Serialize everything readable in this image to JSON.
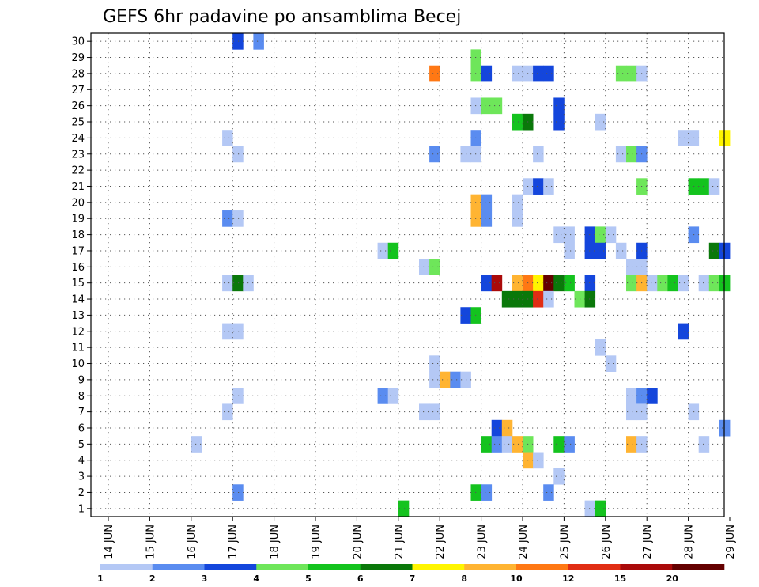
{
  "chart_data": {
    "type": "heatmap",
    "title": "GEFS 6hr padavine po ansamblima Becej",
    "xlabel": "",
    "ylabel": "",
    "x_tick_labels": [
      "14 JUN",
      "15 JUN",
      "16 JUN",
      "17 JUN",
      "18 JUN",
      "19 JUN",
      "20 JUN",
      "21 JUN",
      "22 JUN",
      "23 JUN",
      "24 JUN",
      "25 JUN",
      "26 JUN",
      "27 JUN",
      "28 JUN",
      "29 JUN"
    ],
    "y_tick_labels": [
      "1",
      "2",
      "3",
      "4",
      "5",
      "6",
      "7",
      "8",
      "9",
      "10",
      "11",
      "12",
      "13",
      "14",
      "15",
      "16",
      "17",
      "18",
      "19",
      "20",
      "21",
      "22",
      "23",
      "24",
      "25",
      "26",
      "27",
      "28",
      "29",
      "30"
    ],
    "grid": true,
    "colorbar": {
      "labels": [
        "1",
        "2",
        "3",
        "4",
        "5",
        "6",
        "7",
        "8",
        "10",
        "12",
        "15",
        "20"
      ],
      "colors": [
        "#b4c8f5",
        "#5a8cf0",
        "#1446dc",
        "#6ee65a",
        "#14c31e",
        "#0a780a",
        "#fff500",
        "#ffb432",
        "#ff7814",
        "#e12d14",
        "#aa0a0a",
        "#640000"
      ]
    },
    "cells": [
      {
        "member": 30,
        "day": 17.0,
        "level": 3
      },
      {
        "member": 30,
        "day": 17.5,
        "level": 2
      },
      {
        "member": 29,
        "day": 22.75,
        "level": 4
      },
      {
        "member": 28,
        "day": 21.75,
        "level": 9
      },
      {
        "member": 28,
        "day": 22.75,
        "level": 4
      },
      {
        "member": 28,
        "day": 23.0,
        "level": 3
      },
      {
        "member": 28,
        "day": 23.75,
        "level": 1
      },
      {
        "member": 28,
        "day": 24.0,
        "level": 1
      },
      {
        "member": 28,
        "day": 24.25,
        "level": 3
      },
      {
        "member": 28,
        "day": 24.5,
        "level": 3
      },
      {
        "member": 28,
        "day": 26.25,
        "level": 4
      },
      {
        "member": 28,
        "day": 26.5,
        "level": 4
      },
      {
        "member": 28,
        "day": 26.75,
        "level": 1
      },
      {
        "member": 26,
        "day": 22.75,
        "level": 1
      },
      {
        "member": 26,
        "day": 23.0,
        "level": 4
      },
      {
        "member": 26,
        "day": 23.25,
        "level": 4
      },
      {
        "member": 26,
        "day": 24.75,
        "level": 3
      },
      {
        "member": 25,
        "day": 23.75,
        "level": 5
      },
      {
        "member": 25,
        "day": 24.0,
        "level": 6
      },
      {
        "member": 25,
        "day": 24.75,
        "level": 3
      },
      {
        "member": 25,
        "day": 25.75,
        "level": 1
      },
      {
        "member": 24,
        "day": 16.75,
        "level": 1
      },
      {
        "member": 24,
        "day": 22.75,
        "level": 2
      },
      {
        "member": 24,
        "day": 27.75,
        "level": 1
      },
      {
        "member": 24,
        "day": 28.0,
        "level": 1
      },
      {
        "member": 24,
        "day": 28.75,
        "level": 7
      },
      {
        "member": 23,
        "day": 17.0,
        "level": 1
      },
      {
        "member": 23,
        "day": 21.75,
        "level": 2
      },
      {
        "member": 23,
        "day": 22.5,
        "level": 1
      },
      {
        "member": 23,
        "day": 22.75,
        "level": 1
      },
      {
        "member": 23,
        "day": 24.25,
        "level": 1
      },
      {
        "member": 23,
        "day": 26.25,
        "level": 1
      },
      {
        "member": 23,
        "day": 26.5,
        "level": 4
      },
      {
        "member": 23,
        "day": 26.75,
        "level": 2
      },
      {
        "member": 21,
        "day": 24.0,
        "level": 1
      },
      {
        "member": 21,
        "day": 24.25,
        "level": 3
      },
      {
        "member": 21,
        "day": 24.5,
        "level": 1
      },
      {
        "member": 21,
        "day": 26.75,
        "level": 4
      },
      {
        "member": 21,
        "day": 28.0,
        "level": 5
      },
      {
        "member": 21,
        "day": 28.25,
        "level": 5
      },
      {
        "member": 21,
        "day": 28.5,
        "level": 1
      },
      {
        "member": 19,
        "day": 16.75,
        "level": 2
      },
      {
        "member": 19,
        "day": 17.0,
        "level": 1
      },
      {
        "member": 19,
        "day": 22.75,
        "level": 8
      },
      {
        "member": 19,
        "day": 23.0,
        "level": 2
      },
      {
        "member": 19,
        "day": 23.75,
        "level": 1
      },
      {
        "member": 18,
        "day": 24.75,
        "level": 1
      },
      {
        "member": 18,
        "day": 25.0,
        "level": 1
      },
      {
        "member": 18,
        "day": 25.5,
        "level": 3
      },
      {
        "member": 18,
        "day": 25.75,
        "level": 4
      },
      {
        "member": 18,
        "day": 26.0,
        "level": 1
      },
      {
        "member": 18,
        "day": 28.0,
        "level": 2
      },
      {
        "member": 20,
        "day": 22.75,
        "level": 8
      },
      {
        "member": 20,
        "day": 23.0,
        "level": 2
      },
      {
        "member": 20,
        "day": 23.75,
        "level": 1
      },
      {
        "member": 17,
        "day": 20.5,
        "level": 1
      },
      {
        "member": 17,
        "day": 20.75,
        "level": 5
      },
      {
        "member": 17,
        "day": 25.0,
        "level": 1
      },
      {
        "member": 17,
        "day": 25.5,
        "level": 3
      },
      {
        "member": 17,
        "day": 25.75,
        "level": 3
      },
      {
        "member": 17,
        "day": 26.25,
        "level": 1
      },
      {
        "member": 17,
        "day": 26.75,
        "level": 3
      },
      {
        "member": 17,
        "day": 28.5,
        "level": 6
      },
      {
        "member": 17,
        "day": 28.75,
        "level": 3
      },
      {
        "member": 16,
        "day": 21.5,
        "level": 1
      },
      {
        "member": 16,
        "day": 21.75,
        "level": 4
      },
      {
        "member": 16,
        "day": 26.5,
        "level": 1
      },
      {
        "member": 16,
        "day": 26.75,
        "level": 1
      },
      {
        "member": 15,
        "day": 16.75,
        "level": 1
      },
      {
        "member": 15,
        "day": 17.0,
        "level": 6
      },
      {
        "member": 15,
        "day": 17.25,
        "level": 1
      },
      {
        "member": 15,
        "day": 23.0,
        "level": 3
      },
      {
        "member": 15,
        "day": 23.25,
        "level": 11
      },
      {
        "member": 15,
        "day": 23.75,
        "level": 8
      },
      {
        "member": 15,
        "day": 24.0,
        "level": 9
      },
      {
        "member": 15,
        "day": 24.25,
        "level": 7
      },
      {
        "member": 15,
        "day": 24.5,
        "level": 12
      },
      {
        "member": 15,
        "day": 24.75,
        "level": 6
      },
      {
        "member": 15,
        "day": 25.0,
        "level": 5
      },
      {
        "member": 15,
        "day": 25.5,
        "level": 3
      },
      {
        "member": 15,
        "day": 26.5,
        "level": 4
      },
      {
        "member": 15,
        "day": 26.75,
        "level": 8
      },
      {
        "member": 15,
        "day": 27.0,
        "level": 1
      },
      {
        "member": 15,
        "day": 27.25,
        "level": 4
      },
      {
        "member": 15,
        "day": 27.5,
        "level": 5
      },
      {
        "member": 15,
        "day": 27.75,
        "level": 1
      },
      {
        "member": 15,
        "day": 28.25,
        "level": 1
      },
      {
        "member": 15,
        "day": 28.5,
        "level": 4
      },
      {
        "member": 15,
        "day": 28.75,
        "level": 5
      },
      {
        "member": 14,
        "day": 23.5,
        "level": 6
      },
      {
        "member": 14,
        "day": 23.75,
        "level": 6
      },
      {
        "member": 14,
        "day": 24.0,
        "level": 6
      },
      {
        "member": 14,
        "day": 24.25,
        "level": 10
      },
      {
        "member": 14,
        "day": 24.5,
        "level": 1
      },
      {
        "member": 14,
        "day": 25.25,
        "level": 4
      },
      {
        "member": 14,
        "day": 25.5,
        "level": 6
      },
      {
        "member": 13,
        "day": 22.5,
        "level": 3
      },
      {
        "member": 13,
        "day": 22.75,
        "level": 5
      },
      {
        "member": 12,
        "day": 16.75,
        "level": 1
      },
      {
        "member": 12,
        "day": 17.0,
        "level": 1
      },
      {
        "member": 12,
        "day": 27.75,
        "level": 3
      },
      {
        "member": 11,
        "day": 25.75,
        "level": 1
      },
      {
        "member": 10,
        "day": 21.75,
        "level": 1
      },
      {
        "member": 10,
        "day": 26.0,
        "level": 1
      },
      {
        "member": 9,
        "day": 21.75,
        "level": 1
      },
      {
        "member": 9,
        "day": 22.0,
        "level": 8
      },
      {
        "member": 9,
        "day": 22.25,
        "level": 2
      },
      {
        "member": 9,
        "day": 22.5,
        "level": 1
      },
      {
        "member": 8,
        "day": 17.0,
        "level": 1
      },
      {
        "member": 8,
        "day": 20.5,
        "level": 2
      },
      {
        "member": 8,
        "day": 20.75,
        "level": 1
      },
      {
        "member": 8,
        "day": 26.5,
        "level": 1
      },
      {
        "member": 8,
        "day": 26.75,
        "level": 2
      },
      {
        "member": 8,
        "day": 27.0,
        "level": 3
      },
      {
        "member": 7,
        "day": 16.75,
        "level": 1
      },
      {
        "member": 7,
        "day": 21.5,
        "level": 1
      },
      {
        "member": 7,
        "day": 21.75,
        "level": 1
      },
      {
        "member": 7,
        "day": 26.5,
        "level": 1
      },
      {
        "member": 7,
        "day": 26.75,
        "level": 1
      },
      {
        "member": 7,
        "day": 28.0,
        "level": 1
      },
      {
        "member": 6,
        "day": 23.25,
        "level": 3
      },
      {
        "member": 6,
        "day": 23.5,
        "level": 8
      },
      {
        "member": 6,
        "day": 28.75,
        "level": 2
      },
      {
        "member": 5,
        "day": 16.0,
        "level": 1
      },
      {
        "member": 5,
        "day": 23.0,
        "level": 5
      },
      {
        "member": 5,
        "day": 23.25,
        "level": 2
      },
      {
        "member": 5,
        "day": 23.5,
        "level": 1
      },
      {
        "member": 5,
        "day": 23.75,
        "level": 8
      },
      {
        "member": 5,
        "day": 24.0,
        "level": 4
      },
      {
        "member": 5,
        "day": 24.75,
        "level": 5
      },
      {
        "member": 5,
        "day": 25.0,
        "level": 2
      },
      {
        "member": 5,
        "day": 26.5,
        "level": 8
      },
      {
        "member": 5,
        "day": 26.75,
        "level": 1
      },
      {
        "member": 5,
        "day": 28.25,
        "level": 1
      },
      {
        "member": 4,
        "day": 24.0,
        "level": 8
      },
      {
        "member": 4,
        "day": 24.25,
        "level": 1
      },
      {
        "member": 3,
        "day": 24.75,
        "level": 1
      },
      {
        "member": 2,
        "day": 17.0,
        "level": 2
      },
      {
        "member": 2,
        "day": 22.75,
        "level": 5
      },
      {
        "member": 2,
        "day": 23.0,
        "level": 2
      },
      {
        "member": 2,
        "day": 24.5,
        "level": 2
      },
      {
        "member": 1,
        "day": 21.0,
        "level": 5
      },
      {
        "member": 1,
        "day": 25.5,
        "level": 1
      },
      {
        "member": 1,
        "day": 25.75,
        "level": 5
      }
    ]
  }
}
